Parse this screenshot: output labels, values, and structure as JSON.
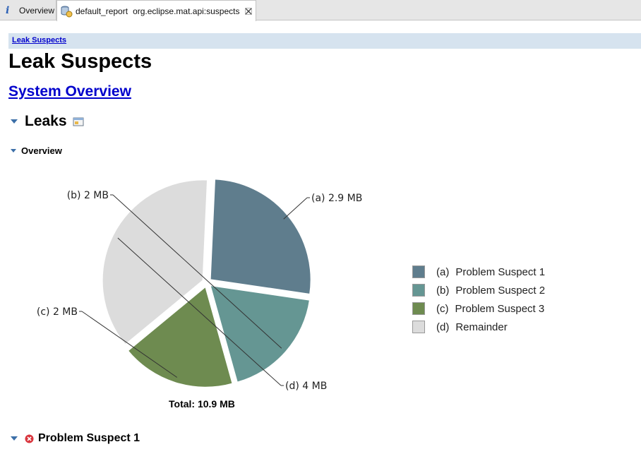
{
  "tabs": {
    "overview_label": "Overview",
    "report_label": "default_report",
    "report_sub": "org.eclipse.mat.api:suspects"
  },
  "breadcrumb": "Leak Suspects",
  "page_title": "Leak Suspects",
  "system_overview_link": "System Overview",
  "sections": {
    "leaks": "Leaks",
    "overview": "Overview",
    "problem_suspect_1": "Problem Suspect 1"
  },
  "chart_data": {
    "type": "pie",
    "unit": "MB",
    "slices": [
      {
        "key": "(a)",
        "name": "Problem Suspect 1",
        "value": 2.9,
        "label": "(a)  2.9 MB",
        "color": "#5f7d8d"
      },
      {
        "key": "(b)",
        "name": "Problem Suspect 2",
        "value": 2.0,
        "label": "(b)  2 MB",
        "color": "#659693"
      },
      {
        "key": "(c)",
        "name": "Problem Suspect 3",
        "value": 2.0,
        "label": "(c)  2 MB",
        "color": "#6e8b50"
      },
      {
        "key": "(d)",
        "name": "Remainder",
        "value": 4.0,
        "label": "(d)  4 MB",
        "color": "#dcdcdc"
      }
    ],
    "legend_position": "right",
    "total_label": "Total: 10.9 MB"
  }
}
